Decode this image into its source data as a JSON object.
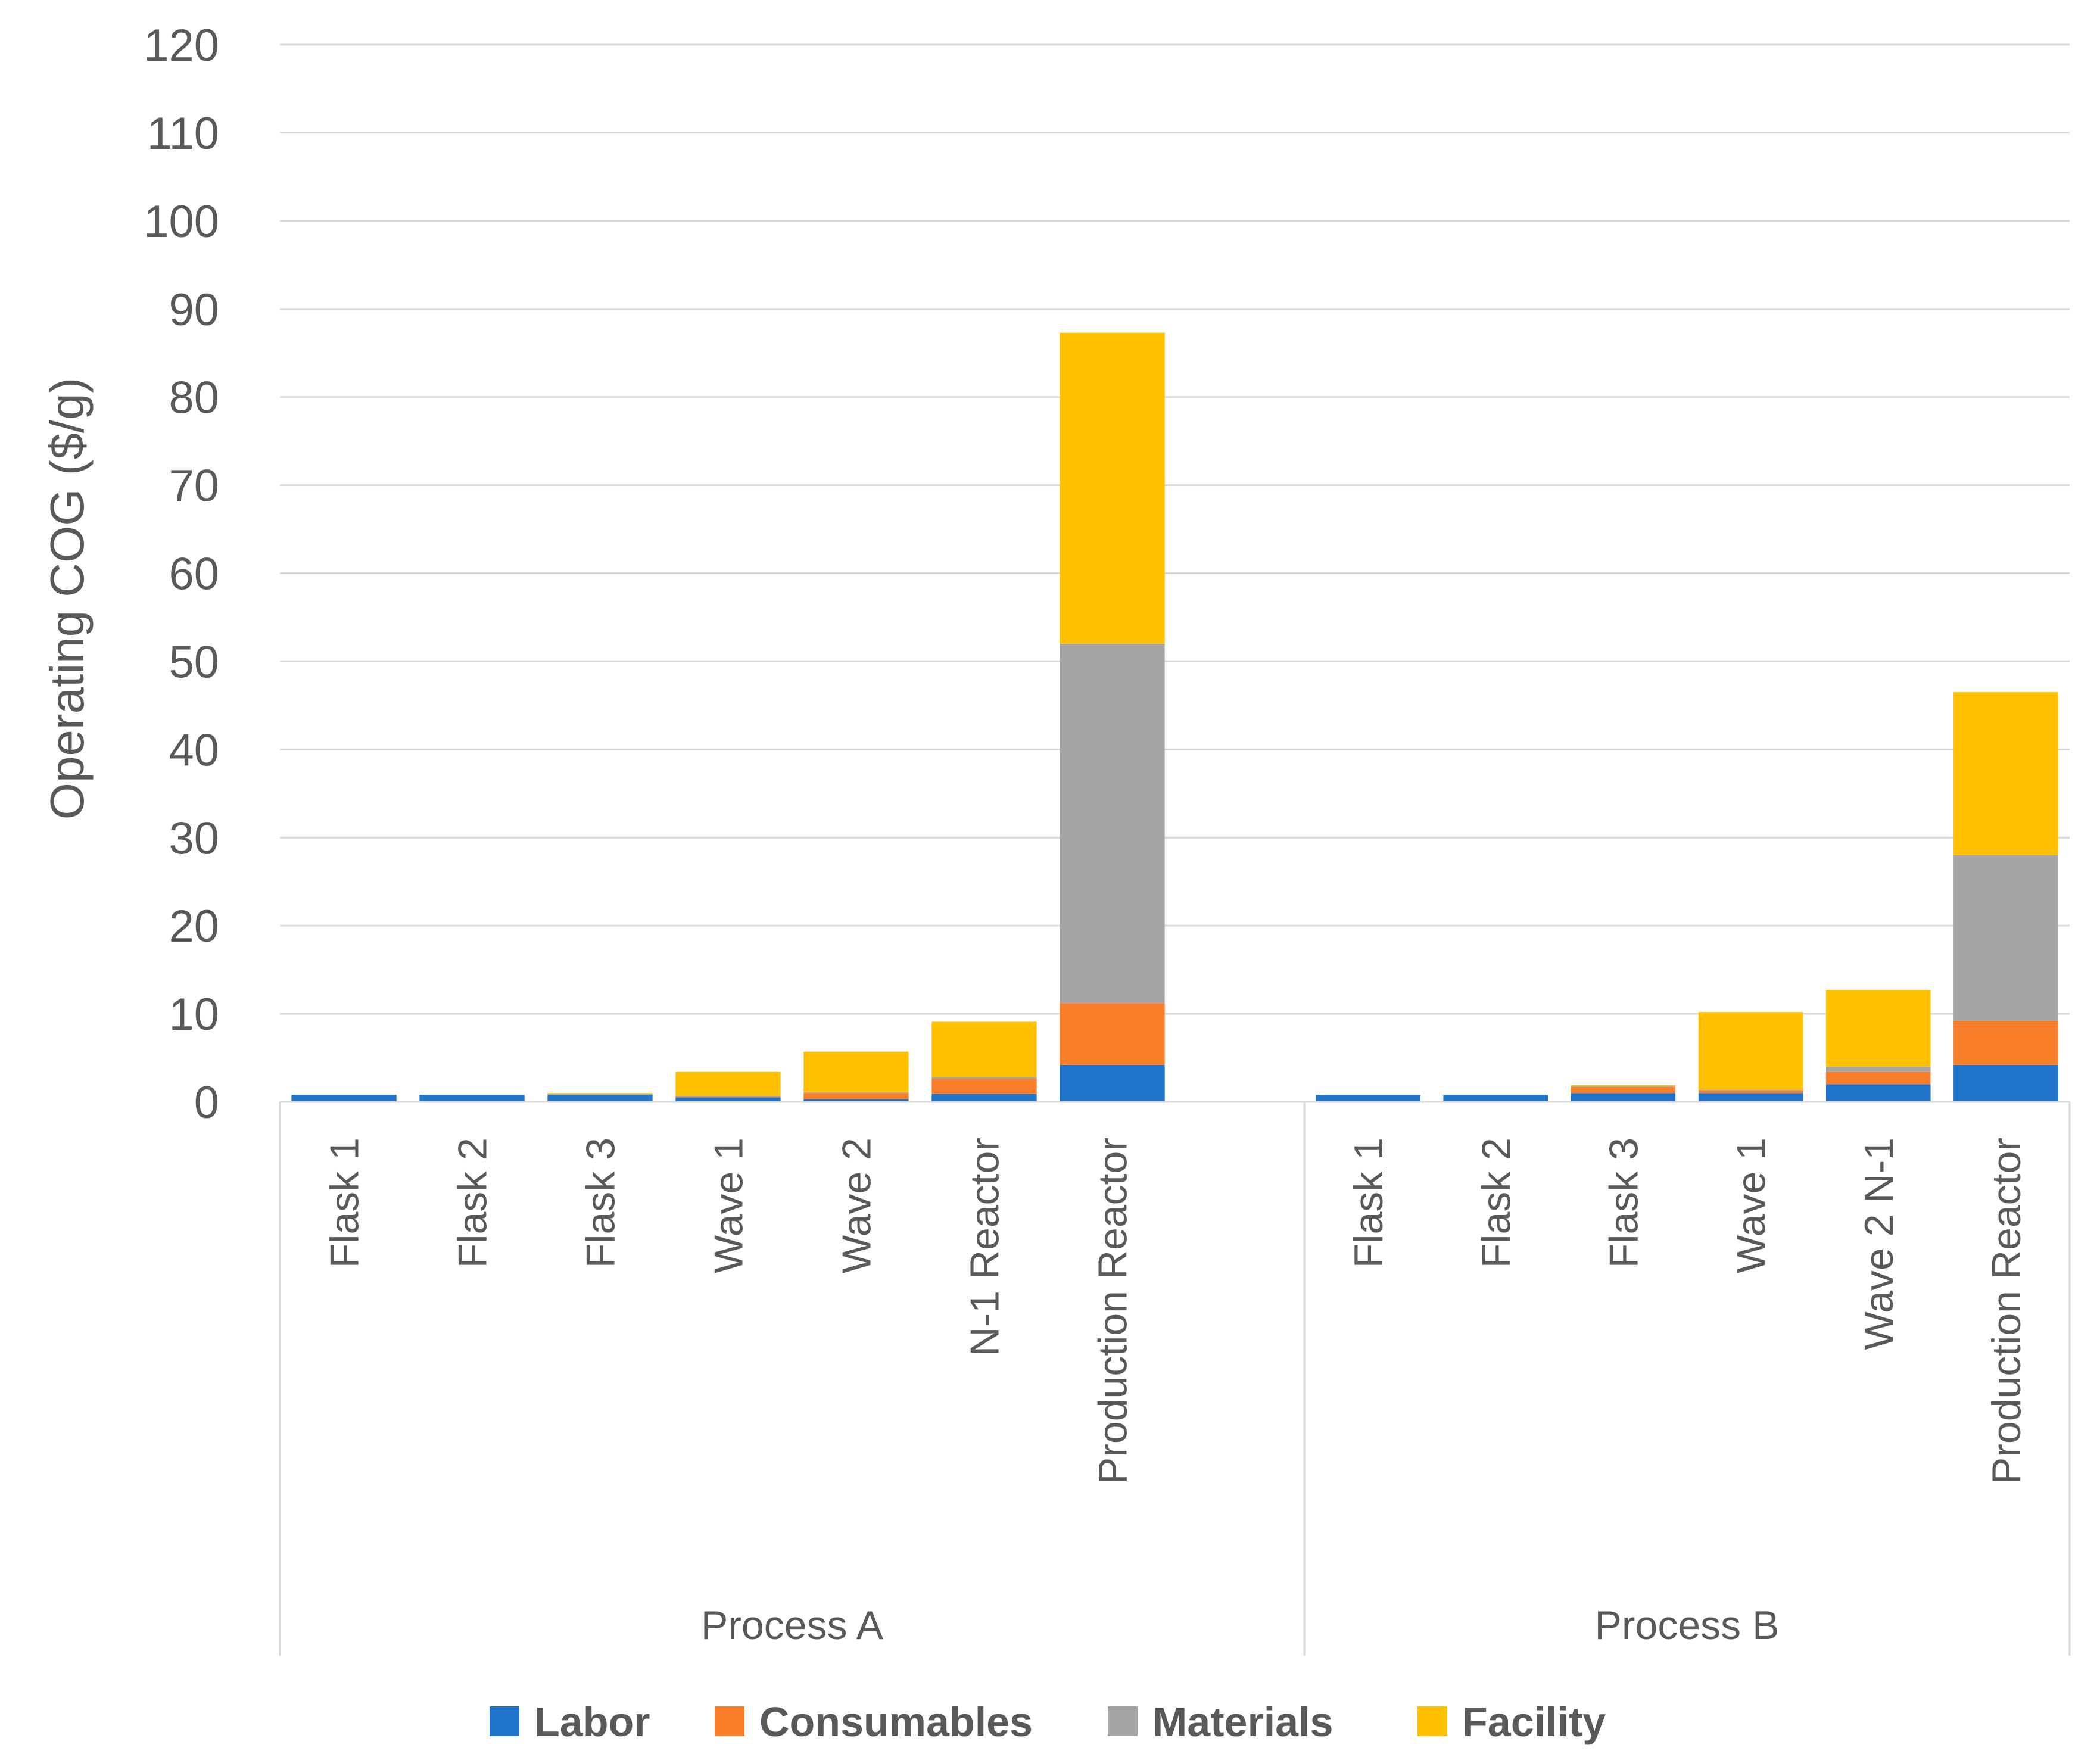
{
  "chart_data": {
    "type": "bar",
    "stacked": true,
    "title": "",
    "xlabel": "",
    "ylabel": "Operating COG ($/g)",
    "ylim": [
      0,
      120
    ],
    "yticks": [
      0,
      10,
      20,
      30,
      40,
      50,
      60,
      70,
      80,
      90,
      100,
      110,
      120
    ],
    "grid": true,
    "legend_position": "bottom",
    "groups": [
      {
        "name": "Process A",
        "categories": [
          "Flask 1",
          "Flask 2",
          "Flask 3",
          "Wave 1",
          "Wave 2",
          "N-1 Reactor",
          "Production Reactor"
        ]
      },
      {
        "name": "Process B",
        "categories": [
          "Flask 1",
          "Flask 2",
          "Flask 3",
          "Wave 1",
          "Wave 2 N-1",
          "Production Reactor"
        ]
      }
    ],
    "series": [
      {
        "name": "Labor",
        "color": "#1f73c8",
        "values": [
          [
            0.8,
            0.8,
            0.8,
            0.5,
            0.3,
            0.9,
            4.2
          ],
          [
            0.8,
            0.8,
            1.0,
            1.0,
            2.0,
            4.2
          ]
        ]
      },
      {
        "name": "Consumables",
        "color": "#f97e2a",
        "values": [
          [
            0.0,
            0.0,
            0.0,
            0.1,
            0.7,
            1.7,
            7.0
          ],
          [
            0.0,
            0.0,
            0.7,
            0.3,
            1.4,
            5.0
          ]
        ]
      },
      {
        "name": "Materials",
        "color": "#a5a5a5",
        "values": [
          [
            0.0,
            0.0,
            0.1,
            0.1,
            0.1,
            0.2,
            40.8
          ],
          [
            0.0,
            0.0,
            0.1,
            0.1,
            0.6,
            18.8
          ]
        ]
      },
      {
        "name": "Facility",
        "color": "#ffc000",
        "values": [
          [
            0.0,
            0.0,
            0.1,
            2.7,
            4.6,
            6.3,
            35.3
          ],
          [
            0.0,
            0.0,
            0.1,
            8.8,
            8.7,
            18.5
          ]
        ]
      }
    ]
  }
}
